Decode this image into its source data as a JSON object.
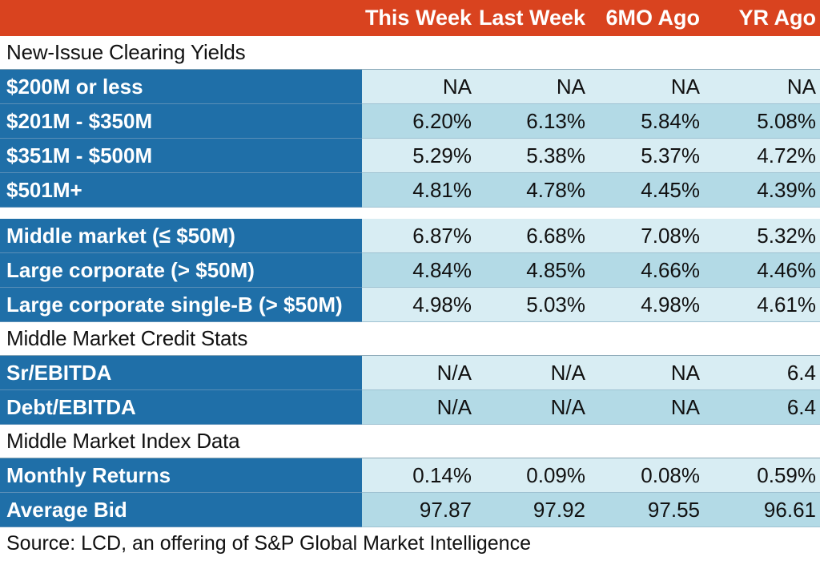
{
  "header": {
    "columns": [
      "This Week",
      "Last Week",
      "6MO Ago",
      "YR Ago"
    ]
  },
  "sections": {
    "clearing_yields_title": "New-Issue Clearing Yields",
    "credit_stats_title": "Middle Market Credit Stats",
    "index_data_title": "Middle Market Index Data"
  },
  "clearing_yields": [
    {
      "label": "$200M or less",
      "values": [
        "NA",
        "NA",
        "NA",
        "NA"
      ]
    },
    {
      "label": "$201M - $350M",
      "values": [
        "6.20%",
        "6.13%",
        "5.84%",
        "5.08%"
      ]
    },
    {
      "label": "$351M - $500M",
      "values": [
        "5.29%",
        "5.38%",
        "5.37%",
        "4.72%"
      ]
    },
    {
      "label": "$501M+",
      "values": [
        "4.81%",
        "4.78%",
        "4.45%",
        "4.39%"
      ]
    }
  ],
  "market_yields": [
    {
      "label": "Middle market (≤ $50M)",
      "values": [
        "6.87%",
        "6.68%",
        "7.08%",
        "5.32%"
      ]
    },
    {
      "label": "Large corporate (> $50M)",
      "values": [
        "4.84%",
        "4.85%",
        "4.66%",
        "4.46%"
      ]
    },
    {
      "label": "Large corporate single-B (> $50M)",
      "values": [
        "4.98%",
        "5.03%",
        "4.98%",
        "4.61%"
      ]
    }
  ],
  "credit_stats": [
    {
      "label": "Sr/EBITDA",
      "values": [
        "N/A",
        "N/A",
        "NA",
        "6.4"
      ]
    },
    {
      "label": "Debt/EBITDA",
      "values": [
        "N/A",
        "N/A",
        "NA",
        "6.4"
      ]
    }
  ],
  "index_data": [
    {
      "label": "Monthly Returns",
      "values": [
        "0.14%",
        "0.09%",
        "0.08%",
        "0.59%"
      ]
    },
    {
      "label": "Average Bid",
      "values": [
        "97.87",
        "97.92",
        "97.55",
        "96.61"
      ]
    }
  ],
  "source": "Source: LCD, an offering of S&P Global Market Intelligence",
  "colors": {
    "header_bg": "#d9431f",
    "label_bg": "#1f6fa8",
    "row_light": "#d8edf3",
    "row_dark": "#b3dae6"
  }
}
